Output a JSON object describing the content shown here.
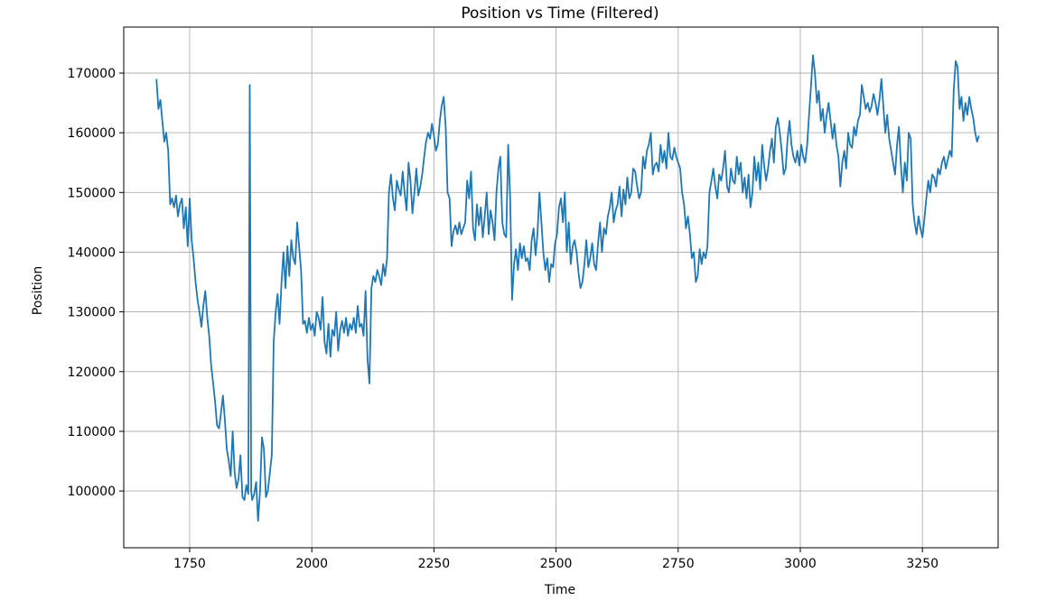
{
  "chart_data": {
    "type": "line",
    "title": "Position vs Time (Filtered)",
    "xlabel": "Time",
    "ylabel": "Position",
    "xlim": [
      1615,
      3405
    ],
    "ylim": [
      90500,
      177700
    ],
    "x_ticks": [
      1750,
      2000,
      2250,
      2500,
      2750,
      3000,
      3250
    ],
    "x_tick_labels": [
      "1750",
      "2000",
      "2250",
      "2500",
      "2750",
      "3000",
      "3250"
    ],
    "y_ticks": [
      100000,
      110000,
      120000,
      130000,
      140000,
      150000,
      160000,
      170000
    ],
    "y_tick_labels": [
      "100000",
      "110000",
      "120000",
      "130000",
      "140000",
      "150000",
      "160000",
      "170000"
    ],
    "grid": true,
    "color": "#1f77b4",
    "series": [
      {
        "x": [
          1682,
          1686,
          1690,
          1694,
          1698,
          1702,
          1706,
          1710,
          1714,
          1718,
          1722,
          1726,
          1730,
          1734,
          1738,
          1742,
          1746,
          1750,
          1754,
          1758,
          1762,
          1766,
          1770,
          1774,
          1778,
          1782,
          1786,
          1790,
          1794,
          1798,
          1802,
          1806,
          1810,
          1814,
          1818,
          1822,
          1826,
          1830,
          1834,
          1838,
          1842,
          1846,
          1850,
          1854,
          1858,
          1862,
          1866,
          1870,
          1873,
          1876,
          1878,
          1882,
          1886,
          1890,
          1894,
          1898,
          1902,
          1906,
          1910,
          1914,
          1918,
          1922,
          1926,
          1930,
          1934,
          1938,
          1942,
          1946,
          1950,
          1954,
          1958,
          1962,
          1966,
          1970,
          1974,
          1978,
          1982,
          1986,
          1990,
          1994,
          1998,
          2002,
          2006,
          2010,
          2014,
          2018,
          2022,
          2026,
          2030,
          2034,
          2038,
          2042,
          2046,
          2050,
          2054,
          2058,
          2062,
          2066,
          2070,
          2074,
          2078,
          2082,
          2086,
          2090,
          2094,
          2098,
          2102,
          2106,
          2110,
          2114,
          2118,
          2122,
          2126,
          2130,
          2134,
          2138,
          2142,
          2146,
          2150,
          2154,
          2158,
          2162,
          2166,
          2170,
          2174,
          2178,
          2182,
          2186,
          2190,
          2194,
          2198,
          2202,
          2206,
          2210,
          2214,
          2218,
          2222,
          2226,
          2230,
          2234,
          2238,
          2242,
          2246,
          2250,
          2254,
          2258,
          2262,
          2266,
          2270,
          2274,
          2278,
          2282,
          2286,
          2290,
          2294,
          2298,
          2302,
          2306,
          2310,
          2314,
          2318,
          2322,
          2326,
          2330,
          2334,
          2338,
          2342,
          2346,
          2350,
          2354,
          2358,
          2362,
          2366,
          2370,
          2374,
          2378,
          2382,
          2386,
          2390,
          2394,
          2398,
          2402,
          2406,
          2410,
          2414,
          2418,
          2422,
          2426,
          2430,
          2434,
          2438,
          2442,
          2446,
          2450,
          2454,
          2458,
          2462,
          2466,
          2470,
          2474,
          2478,
          2482,
          2486,
          2490,
          2494,
          2498,
          2502,
          2506,
          2510,
          2514,
          2518,
          2522,
          2526,
          2530,
          2534,
          2538,
          2542,
          2546,
          2550,
          2554,
          2558,
          2562,
          2566,
          2570,
          2574,
          2578,
          2582,
          2586,
          2590,
          2594,
          2598,
          2602,
          2606,
          2610,
          2614,
          2618,
          2622,
          2626,
          2630,
          2634,
          2638,
          2642,
          2646,
          2650,
          2654,
          2658,
          2662,
          2666,
          2670,
          2674,
          2678,
          2682,
          2686,
          2690,
          2694,
          2698,
          2702,
          2706,
          2710,
          2714,
          2718,
          2722,
          2726,
          2730,
          2734,
          2738,
          2742,
          2746,
          2750,
          2754,
          2758,
          2762,
          2766,
          2770,
          2774,
          2778,
          2782,
          2786,
          2790,
          2794,
          2798,
          2802,
          2806,
          2810,
          2814,
          2818,
          2822,
          2826,
          2830,
          2834,
          2838,
          2842,
          2846,
          2850,
          2854,
          2858,
          2862,
          2866,
          2870,
          2874,
          2878,
          2882,
          2886,
          2890,
          2894,
          2898,
          2902,
          2906,
          2910,
          2914,
          2918,
          2922,
          2926,
          2930,
          2934,
          2938,
          2942,
          2946,
          2950,
          2954,
          2958,
          2962,
          2966,
          2970,
          2974,
          2978,
          2982,
          2986,
          2990,
          2994,
          2998,
          3002,
          3006,
          3010,
          3014,
          3018,
          3022,
          3026,
          3030,
          3034,
          3038,
          3042,
          3046,
          3050,
          3054,
          3058,
          3062,
          3066,
          3070,
          3074,
          3078,
          3082,
          3086,
          3090,
          3094,
          3098,
          3102,
          3106,
          3110,
          3114,
          3118,
          3122,
          3126,
          3130,
          3134,
          3138,
          3142,
          3146,
          3150,
          3154,
          3158,
          3162,
          3166,
          3170,
          3174,
          3178,
          3182,
          3186,
          3190,
          3194,
          3198,
          3202,
          3206,
          3210,
          3214,
          3218,
          3222,
          3226,
          3230,
          3234,
          3238,
          3242,
          3246,
          3250,
          3254,
          3258,
          3262,
          3266,
          3270,
          3274,
          3278,
          3282,
          3286,
          3290,
          3294,
          3298,
          3302,
          3306,
          3310,
          3314,
          3318,
          3322,
          3326,
          3330,
          3334,
          3338,
          3342,
          3346,
          3350,
          3354,
          3358,
          3362,
          3366
        ],
        "y": [
          169000,
          164000,
          165500,
          162000,
          158500,
          160000,
          157000,
          148000,
          149000,
          147500,
          149500,
          146000,
          148000,
          149000,
          144000,
          147500,
          141000,
          149000,
          142000,
          139000,
          135000,
          132000,
          130000,
          127500,
          131000,
          133500,
          129000,
          126000,
          121000,
          118000,
          115000,
          111000,
          110500,
          113000,
          116000,
          112000,
          107000,
          105000,
          102500,
          110000,
          103000,
          100500,
          102000,
          106000,
          99000,
          98500,
          101000,
          99500,
          168000,
          100000,
          98500,
          99500,
          101500,
          95000,
          100000,
          109000,
          107000,
          99000,
          100000,
          103000,
          106000,
          125000,
          130000,
          133000,
          128000,
          135000,
          140000,
          134000,
          141000,
          136000,
          142000,
          139000,
          138000,
          145000,
          141000,
          137000,
          128000,
          128500,
          126500,
          129000,
          127000,
          128000,
          126000,
          130000,
          129000,
          127000,
          132500,
          125000,
          123000,
          128000,
          122500,
          127000,
          126000,
          130000,
          123500,
          127000,
          128500,
          126500,
          129000,
          126000,
          128000,
          127000,
          129000,
          126500,
          131000,
          127500,
          128000,
          126000,
          133500,
          122000,
          118000,
          134000,
          136000,
          135000,
          137000,
          136000,
          134500,
          138000,
          136000,
          139000,
          150000,
          153000,
          149000,
          147000,
          152000,
          150500,
          149500,
          153500,
          150000,
          147000,
          155000,
          152000,
          146500,
          150000,
          154000,
          149500,
          151000,
          153000,
          156000,
          158500,
          160000,
          159000,
          161500,
          159500,
          157000,
          158000,
          162000,
          164500,
          166000,
          161000,
          150000,
          149000,
          141000,
          143500,
          144500,
          143000,
          145000,
          143000,
          144000,
          145000,
          152000,
          149000,
          153500,
          144000,
          142000,
          148000,
          144500,
          147500,
          142500,
          146000,
          150000,
          143000,
          147000,
          145000,
          142000,
          150000,
          154000,
          156000,
          145000,
          143000,
          142500,
          158000,
          149000,
          132000,
          138000,
          140500,
          137000,
          141500,
          139000,
          141000,
          138500,
          139000,
          137000,
          142000,
          144000,
          139500,
          143000,
          150000,
          145000,
          140000,
          137000,
          139000,
          135000,
          138000,
          137500,
          141500,
          143000,
          147500,
          149000,
          145000,
          150000,
          140000,
          145000,
          138000,
          141000,
          142000,
          140000,
          136500,
          134000,
          135000,
          138000,
          142000,
          137500,
          139000,
          141500,
          138000,
          137000,
          141500,
          145000,
          140000,
          144000,
          143000,
          146000,
          147500,
          150000,
          145000,
          147000,
          148000,
          151000,
          146000,
          150500,
          148000,
          152500,
          149000,
          150000,
          154000,
          153500,
          151000,
          149000,
          150000,
          156000,
          154000,
          157000,
          158000,
          160000,
          153000,
          154500,
          155000,
          153500,
          158000,
          155000,
          157000,
          154000,
          160000,
          156000,
          155500,
          157500,
          156000,
          155000,
          154000,
          150000,
          148000,
          144000,
          146000,
          143000,
          139000,
          140000,
          135000,
          136000,
          140500,
          138000,
          140000,
          139000,
          141000,
          150000,
          152000,
          154000,
          151000,
          149000,
          153000,
          152000,
          154000,
          157000,
          151000,
          150000,
          154000,
          152000,
          151500,
          156000,
          153000,
          155000,
          150000,
          152500,
          149000,
          153000,
          147500,
          150000,
          156000,
          152000,
          155000,
          150500,
          158000,
          154500,
          152000,
          154000,
          157000,
          159000,
          155000,
          161000,
          162500,
          160000,
          157000,
          153000,
          154000,
          159000,
          162000,
          158000,
          156000,
          155000,
          157000,
          154500,
          158000,
          156000,
          155000,
          158000,
          163000,
          168000,
          173000,
          170000,
          165000,
          167000,
          162000,
          164000,
          160000,
          163000,
          165000,
          162000,
          159000,
          161500,
          158000,
          156000,
          151000,
          155000,
          157000,
          154000,
          160000,
          158000,
          157500,
          161000,
          159500,
          162000,
          163000,
          168000,
          166000,
          164000,
          165000,
          163500,
          164500,
          166500,
          165000,
          163000,
          165500,
          169000,
          164500,
          160000,
          163000,
          159000,
          157000,
          155000,
          153000,
          158000,
          161000,
          154500,
          150000,
          155000,
          152000,
          160000,
          159000,
          148000,
          145000,
          143000,
          146000,
          144000,
          142500,
          145500,
          149000,
          152000,
          150000,
          153000,
          152500,
          151000,
          154000,
          153000,
          155000,
          156000,
          154000,
          155500,
          157000,
          156000,
          167000,
          172000,
          171000,
          164000,
          166000,
          162000,
          165000,
          163000,
          166000,
          164000,
          162500,
          160000,
          158500,
          159500
        ]
      }
    ]
  }
}
